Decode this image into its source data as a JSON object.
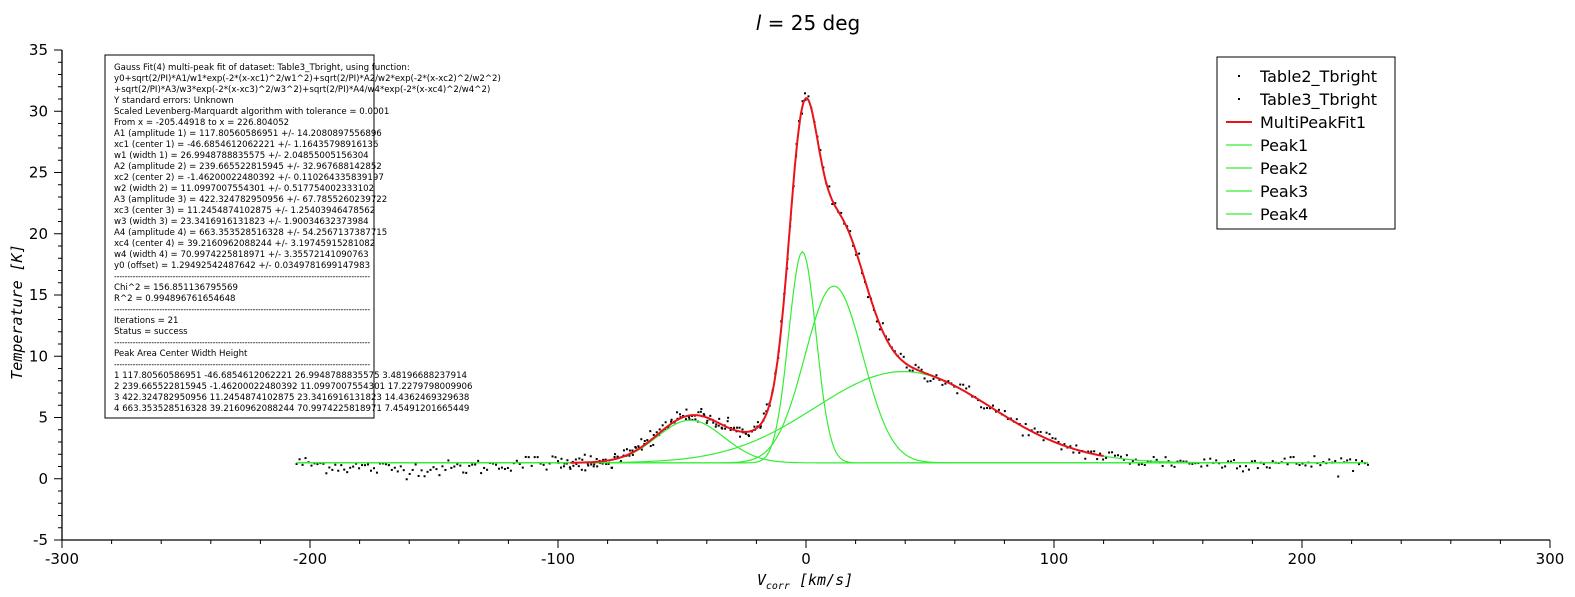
{
  "chart_data": {
    "type": "scatter",
    "title": {
      "prefix": "l",
      "rest": " = 25 deg"
    },
    "xlabel": {
      "main": "V",
      "sub": "corr",
      "rest": " [km/s]"
    },
    "ylabel": "Temperature [K]",
    "xlim": [
      -300,
      300
    ],
    "ylim": [
      -5,
      35
    ],
    "xticks": [
      -300,
      -200,
      -100,
      0,
      100,
      200,
      300
    ],
    "yticks": [
      -5,
      0,
      5,
      10,
      15,
      20,
      25,
      30,
      35
    ],
    "xtick_labels": [
      "-300",
      "-200",
      "-100",
      "0",
      "100",
      "200",
      "300"
    ],
    "ytick_labels": [
      "-5",
      "0",
      "5",
      "10",
      "15",
      "20",
      "25",
      "30",
      "35"
    ],
    "fit_range": [
      -205.44918,
      226.804052
    ],
    "offset": 1.29492542487642,
    "peaks": [
      {
        "name": "Peak1",
        "area": 117.80560586951,
        "center": -46.6854612062221,
        "width": 26.9948788835575
      },
      {
        "name": "Peak2",
        "area": 239.665522815945,
        "center": -1.46200022480392,
        "width": 11.0997007554301
      },
      {
        "name": "Peak3",
        "area": 422.324782950956,
        "center": 11.2454874102875,
        "width": 23.3416916131823
      },
      {
        "name": "Peak4",
        "area": 663.353528516328,
        "center": 39.2160962088244,
        "width": 70.9974225818971
      }
    ],
    "series": [
      {
        "name": "Table2_Tbright",
        "kind": "points",
        "color": "#000000",
        "x_range": [
          -100,
          0
        ],
        "noise": 0.28
      },
      {
        "name": "Table3_Tbright",
        "kind": "points",
        "color": "#000000",
        "x_range": [
          -205.4,
          226.8
        ],
        "noise": 0.32
      },
      {
        "name": "MultiPeakFit1",
        "kind": "line",
        "color": "#e8141a"
      },
      {
        "name": "Peak1",
        "kind": "line",
        "color": "#33ee33"
      },
      {
        "name": "Peak2",
        "kind": "line",
        "color": "#33ee33"
      },
      {
        "name": "Peak3",
        "kind": "line",
        "color": "#33ee33"
      },
      {
        "name": "Peak4",
        "kind": "line",
        "color": "#33ee33"
      }
    ],
    "legend": [
      "Table2_Tbright",
      "Table3_Tbright",
      "MultiPeakFit1",
      "Peak1",
      "Peak2",
      "Peak3",
      "Peak4"
    ],
    "legend_position": "top-right",
    "grid": false,
    "stats_box": [
      "Gauss Fit(4) multi-peak fit of dataset: Table3_Tbright, using function:",
      "y0+sqrt(2/PI)*A1/w1*exp(-2*(x-xc1)^2/w1^2)+sqrt(2/PI)*A2/w2*exp(-2*(x-xc2)^2/w2^2)",
      " +sqrt(2/PI)*A3/w3*exp(-2*(x-xc3)^2/w3^2)+sqrt(2/PI)*A4/w4*exp(-2*(x-xc4)^2/w4^2)",
      "Y standard errors: Unknown",
      "Scaled Levenberg-Marquardt algorithm with tolerance = 0.0001",
      "From x = -205.44918 to x = 226.804052",
      "A1 (amplitude 1) = 117.80560586951 +/- 14.2080897556896",
      "xc1 (center 1) = -46.6854612062221 +/- 1.16435798916136",
      "w1 (width 1) = 26.9948788835575 +/- 2.04855005156304",
      "A2 (amplitude 2) = 239.665522815945 +/- 32.967688142852",
      "xc2 (center 2) = -1.46200022480392 +/- 0.110264335839197",
      "w2 (width 2) = 11.0997007554301 +/- 0.517754002333102",
      "A3 (amplitude 3) = 422.324782950956 +/- 67.7855260239722",
      "xc3 (center 3) = 11.2454874102875 +/- 1.25403946478562",
      "w3 (width 3) = 23.3416916131823 +/- 1.90034632373984",
      "A4 (amplitude 4) = 663.353528516328 +/- 54.2567137387715",
      "xc4 (center 4) = 39.2160962088244 +/- 3.19745915281082",
      "w4 (width 4) = 70.9974225818971 +/- 3.35572141090763",
      "y0 (offset) = 1.29492542487642 +/- 0.0349781699147983",
      "------------------------------------------------------------------------------------------------",
      "Chi^2 = 156.851136795569",
      "R^2 = 0.994896761654648",
      "------------------------------------------------------------------------------------------------",
      "Iterations = 21",
      "Status = success",
      "------------------------------------------------------------------------------------------------",
      "Peak Area Center Width Height",
      "------------------------------------------------------------------------------------------------",
      "1 117.80560586951 -46.6854612062221 26.9948788835575 3.48196688237914",
      "2 239.665522815945 -1.46200022480392 11.0997007554301 17.2279798009906",
      "3 422.324782950956 11.2454874102875 23.3416916131823 14.4362469329638",
      "4 663.353528516328 39.2160962088244 70.9974225818971 7.45491201665449"
    ]
  }
}
